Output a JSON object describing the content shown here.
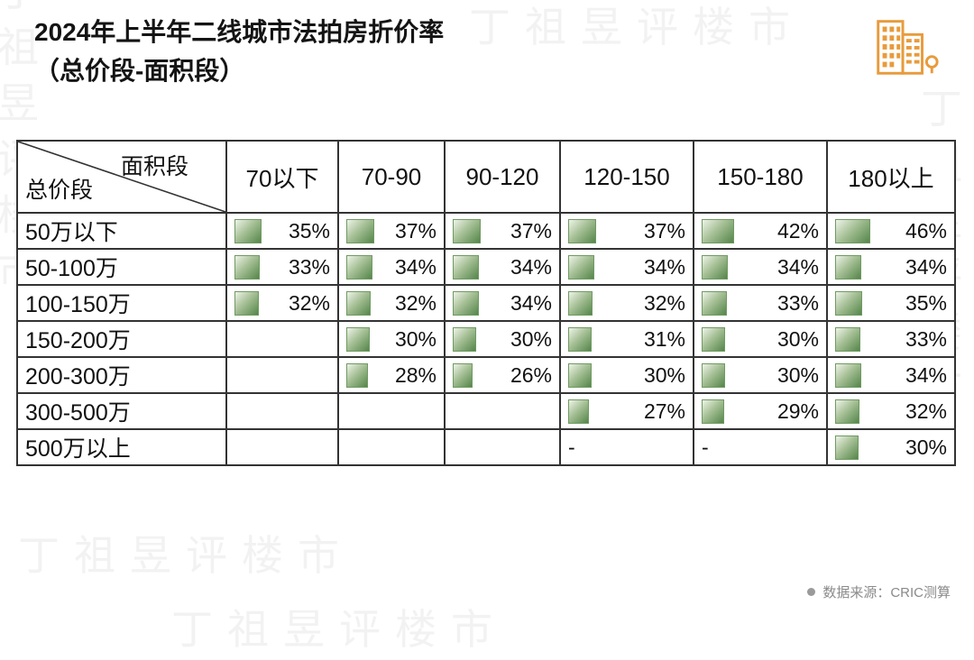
{
  "title": {
    "line1": "2024年上半年二线城市法拍房折价率",
    "line2": "（总价段-面积段）"
  },
  "watermark": {
    "text": "丁祖昱评楼市"
  },
  "colors": {
    "accent_orange": "#E89B3C",
    "bar_gradient_light": "#EEF4E8",
    "bar_gradient_dark": "#55864A",
    "grid_line": "#333333",
    "source_gray": "#8A8A8A"
  },
  "footer": {
    "source": "数据来源：CRIC测算"
  },
  "chart_data": {
    "type": "table",
    "title": "2024年上半年二线城市法拍房折价率（总价段-面积段）",
    "corner_top": "面积段",
    "corner_bottom": "总价段",
    "unit": "%",
    "columns": [
      "70以下",
      "70-90",
      "90-120",
      "120-150",
      "150-180",
      "180以上"
    ],
    "rows": [
      {
        "label": "50万以下",
        "values": [
          35,
          37,
          37,
          37,
          42,
          46
        ]
      },
      {
        "label": "50-100万",
        "values": [
          33,
          34,
          34,
          34,
          34,
          34
        ]
      },
      {
        "label": "100-150万",
        "values": [
          32,
          32,
          34,
          32,
          33,
          35
        ]
      },
      {
        "label": "150-200万",
        "values": [
          null,
          30,
          30,
          31,
          30,
          33
        ]
      },
      {
        "label": "200-300万",
        "values": [
          null,
          28,
          26,
          30,
          30,
          34
        ]
      },
      {
        "label": "300-500万",
        "values": [
          null,
          null,
          null,
          27,
          29,
          32
        ]
      },
      {
        "label": "500万以上",
        "values": [
          null,
          null,
          null,
          "-",
          "-",
          30
        ]
      }
    ],
    "source": "数据来源：CRIC测算"
  }
}
